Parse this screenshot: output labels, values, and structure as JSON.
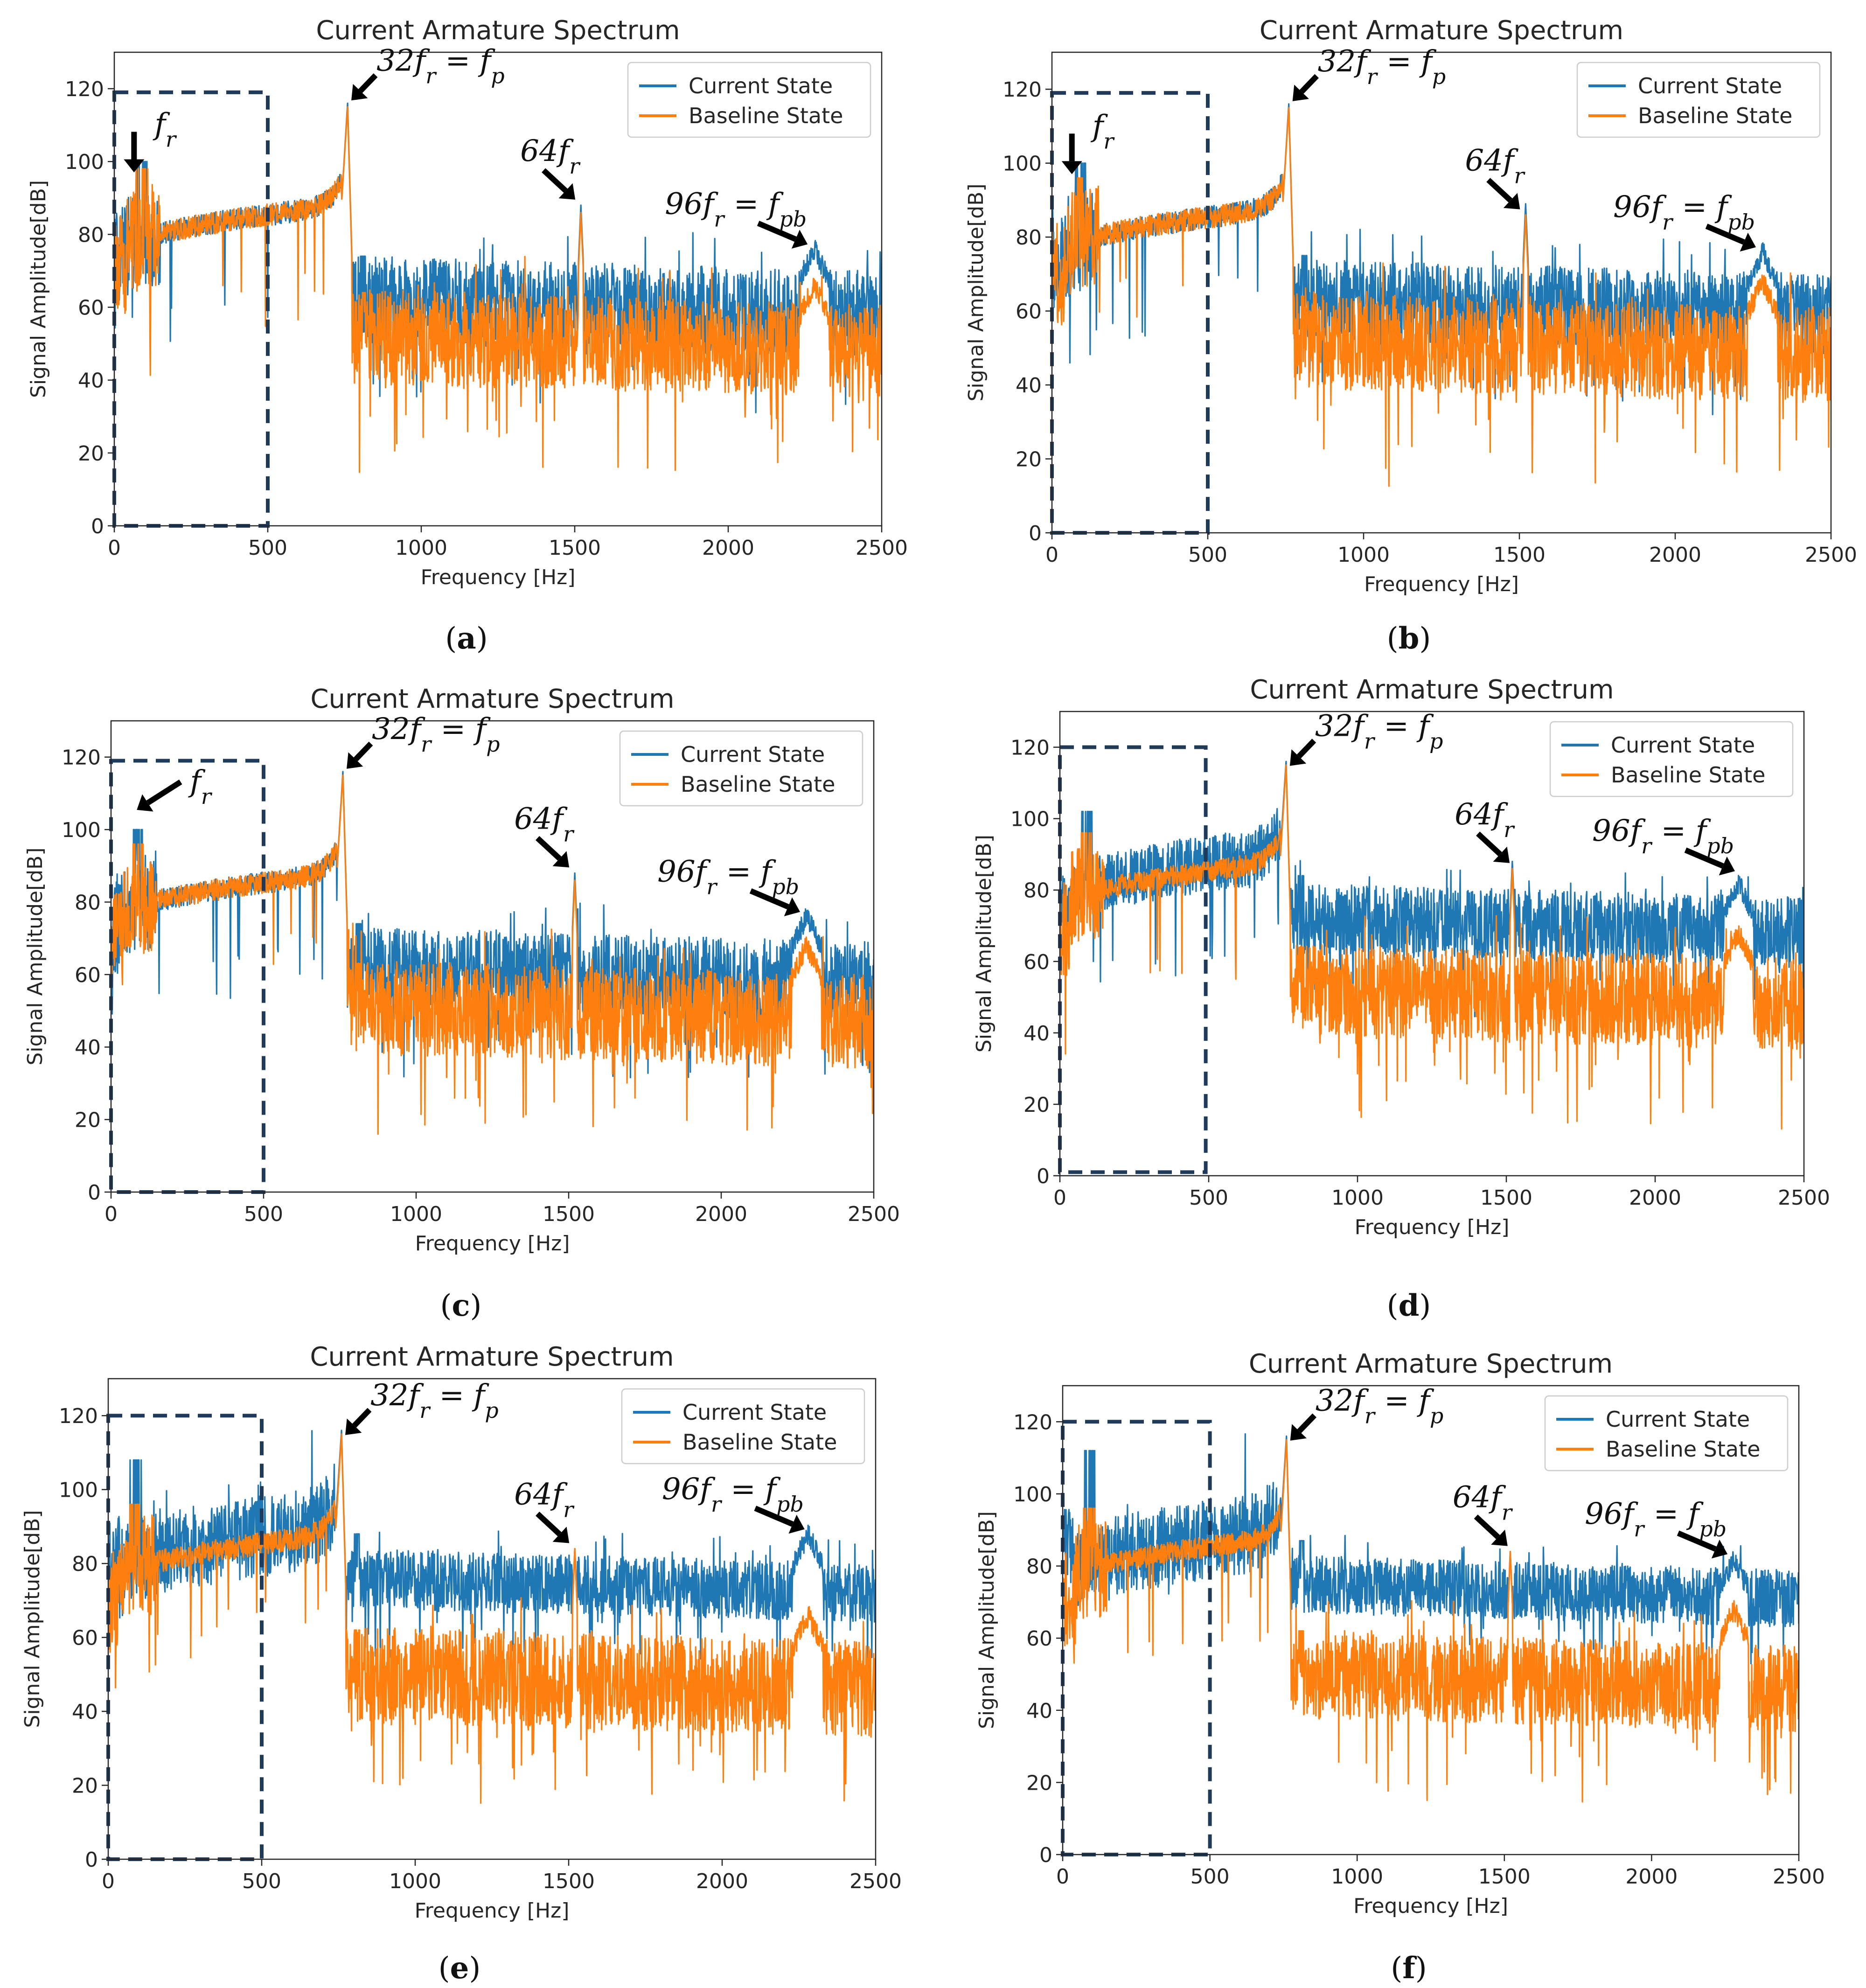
{
  "figure": {
    "panel_labels": [
      "(a)",
      "(b)",
      "(c)",
      "(d)",
      "(e)",
      "(f)"
    ],
    "colors": {
      "current": "#1f77b4",
      "baseline": "#ff7f0e",
      "box": "#1f3a5a",
      "arrow": "#000000"
    }
  },
  "chart_data": [
    {
      "type": "line",
      "panel": "(a)",
      "title": "Current Armature Spectrum",
      "xlabel": "Frequency [Hz]",
      "ylabel": "Signal Amplitude[dB]",
      "xlim": [
        0,
        2500
      ],
      "ylim": [
        0,
        130
      ],
      "xticks": [
        0,
        500,
        1000,
        1500,
        2000,
        2500
      ],
      "yticks": [
        0,
        20,
        40,
        60,
        80,
        100,
        120
      ],
      "legend": [
        "Current State",
        "Baseline State"
      ],
      "legend_loc": "top-right",
      "box_region_hz": [
        0,
        500
      ],
      "box_region_db": [
        0,
        119
      ],
      "series": [
        {
          "name": "Current State",
          "profile": {
            "low_band_db": 80,
            "knee_db": 88,
            "peak_fp_db": 116,
            "peak_64fr_db": 88,
            "peak_96fr_db": 76,
            "hf_mean_db": 62,
            "hf_spread_db": 12
          }
        },
        {
          "name": "Baseline State",
          "profile": {
            "low_band_db": 78,
            "knee_db": 88,
            "peak_fp_db": 115,
            "peak_64fr_db": 86,
            "peak_96fr_db": 66,
            "hf_mean_db": 52,
            "hf_spread_db": 13
          }
        }
      ],
      "annotations": [
        {
          "text": "f_r",
          "math": [
            "f",
            "r"
          ],
          "x_hz": 40,
          "y_db": 96
        },
        {
          "text": "32f_r = f_p",
          "math": [
            "32f",
            "r",
            " = f",
            "p"
          ],
          "x_hz": 760,
          "y_db": 116
        },
        {
          "text": "64f_r",
          "math": [
            "64f",
            "r"
          ],
          "x_hz": 1520,
          "y_db": 88
        },
        {
          "text": "96f_r = f_pb",
          "math": [
            "96f",
            "r",
            " = f",
            "pb"
          ],
          "x_hz": 2280,
          "y_db": 76
        }
      ]
    },
    {
      "type": "line",
      "panel": "(b)",
      "title": "Current Armature Spectrum",
      "xlabel": "Frequency [Hz]",
      "ylabel": "Signal Amplitude[dB]",
      "xlim": [
        0,
        2500
      ],
      "ylim": [
        0,
        130
      ],
      "xticks": [
        0,
        500,
        1000,
        1500,
        2000,
        2500
      ],
      "yticks": [
        0,
        20,
        40,
        60,
        80,
        100,
        120
      ],
      "legend": [
        "Current State",
        "Baseline State"
      ],
      "legend_loc": "top-right",
      "box_region_hz": [
        0,
        500
      ],
      "box_region_db": [
        0,
        119
      ],
      "series": [
        {
          "name": "Current State",
          "profile": {
            "low_band_db": 80,
            "knee_db": 88,
            "peak_fp_db": 116,
            "peak_64fr_db": 89,
            "peak_96fr_db": 76,
            "hf_mean_db": 63,
            "hf_spread_db": 11
          }
        },
        {
          "name": "Baseline State",
          "profile": {
            "low_band_db": 76,
            "knee_db": 88,
            "peak_fp_db": 115,
            "peak_64fr_db": 86,
            "peak_96fr_db": 68,
            "hf_mean_db": 52,
            "hf_spread_db": 13
          }
        }
      ],
      "annotations": [
        {
          "text": "f_r",
          "math": [
            "f",
            "r"
          ],
          "x_hz": 40,
          "y_db": 96
        },
        {
          "text": "32f_r = f_p",
          "math": [
            "32f",
            "r",
            " = f",
            "p"
          ],
          "x_hz": 760,
          "y_db": 116
        },
        {
          "text": "64f_r",
          "math": [
            "64f",
            "r"
          ],
          "x_hz": 1520,
          "y_db": 86
        },
        {
          "text": "96f_r = f_pb",
          "math": [
            "96f",
            "r",
            " = f",
            "pb"
          ],
          "x_hz": 2280,
          "y_db": 76
        }
      ]
    },
    {
      "type": "line",
      "panel": "(c)",
      "title": "Current Armature Spectrum",
      "xlabel": "Frequency [Hz]",
      "ylabel": "Signal Amplitude[dB]",
      "xlim": [
        0,
        2500
      ],
      "ylim": [
        0,
        130
      ],
      "xticks": [
        0,
        500,
        1000,
        1500,
        2000,
        2500
      ],
      "yticks": [
        0,
        20,
        40,
        60,
        80,
        100,
        120
      ],
      "legend": [
        "Current State",
        "Baseline State"
      ],
      "legend_loc": "top-right",
      "box_region_hz": [
        0,
        500
      ],
      "box_region_db": [
        0,
        119
      ],
      "series": [
        {
          "name": "Current State",
          "profile": {
            "low_band_db": 80,
            "knee_db": 88,
            "peak_fp_db": 116,
            "peak_64fr_db": 88,
            "peak_96fr_db": 76,
            "hf_mean_db": 62,
            "hf_spread_db": 11
          }
        },
        {
          "name": "Baseline State",
          "profile": {
            "low_band_db": 76,
            "knee_db": 88,
            "peak_fp_db": 115,
            "peak_64fr_db": 86,
            "peak_96fr_db": 68,
            "hf_mean_db": 51,
            "hf_spread_db": 13
          }
        }
      ],
      "annotations": [
        {
          "text": "f_r",
          "math": [
            "f",
            "r"
          ],
          "x_hz": 60,
          "y_db": 108
        },
        {
          "text": "32f_r = f_p",
          "math": [
            "32f",
            "r",
            " = f",
            "p"
          ],
          "x_hz": 760,
          "y_db": 116
        },
        {
          "text": "64f_r",
          "math": [
            "64f",
            "r"
          ],
          "x_hz": 1520,
          "y_db": 88
        },
        {
          "text": "96f_r = f_pb",
          "math": [
            "96f",
            "r",
            " = f",
            "pb"
          ],
          "x_hz": 2280,
          "y_db": 76
        }
      ]
    },
    {
      "type": "line",
      "panel": "(d)",
      "title": "Current Armature Spectrum",
      "xlabel": "Frequency [Hz]",
      "ylabel": "Signal Amplitude[dB]",
      "xlim": [
        0,
        2500
      ],
      "ylim": [
        0,
        130
      ],
      "xticks": [
        0,
        500,
        1000,
        1500,
        2000,
        2500
      ],
      "yticks": [
        0,
        20,
        40,
        60,
        80,
        100,
        120
      ],
      "legend": [
        "Current State",
        "Baseline State"
      ],
      "legend_loc": "top-right",
      "box_region_hz": [
        0,
        490
      ],
      "box_region_db": [
        1,
        120
      ],
      "series": [
        {
          "name": "Current State",
          "profile": {
            "low_band_db": 82,
            "knee_db": 90,
            "peak_fp_db": 116,
            "peak_64fr_db": 88,
            "peak_96fr_db": 82,
            "hf_mean_db": 72,
            "hf_spread_db": 10
          }
        },
        {
          "name": "Baseline State",
          "profile": {
            "low_band_db": 76,
            "knee_db": 88,
            "peak_fp_db": 115,
            "peak_64fr_db": 86,
            "peak_96fr_db": 68,
            "hf_mean_db": 52,
            "hf_spread_db": 13
          }
        }
      ],
      "annotations": [
        {
          "text": "32f_r = f_p",
          "math": [
            "32f",
            "r",
            " = f",
            "p"
          ],
          "x_hz": 760,
          "y_db": 114
        },
        {
          "text": "64f_r",
          "math": [
            "64f",
            "r"
          ],
          "x_hz": 1530,
          "y_db": 86
        },
        {
          "text": "96f_r = f_pb",
          "math": [
            "96f",
            "r",
            " = f",
            "pb"
          ],
          "x_hz": 2290,
          "y_db": 84
        }
      ]
    },
    {
      "type": "line",
      "panel": "(e)",
      "title": "Current Armature Spectrum",
      "xlabel": "Frequency [Hz]",
      "ylabel": "Signal Amplitude[dB]",
      "xlim": [
        0,
        2500
      ],
      "ylim": [
        0,
        130
      ],
      "xticks": [
        0,
        500,
        1000,
        1500,
        2000,
        2500
      ],
      "yticks": [
        0,
        20,
        40,
        60,
        80,
        100,
        120
      ],
      "legend": [
        "Current State",
        "Baseline State"
      ],
      "legend_loc": "top-right",
      "box_region_hz": [
        0,
        500
      ],
      "box_region_db": [
        0,
        120
      ],
      "series": [
        {
          "name": "Current State",
          "profile": {
            "low_band_db": 88,
            "knee_db": 90,
            "peak_fp_db": 116,
            "peak_64fr_db": 84,
            "peak_96fr_db": 88,
            "hf_mean_db": 76,
            "hf_spread_db": 8
          }
        },
        {
          "name": "Baseline State",
          "profile": {
            "low_band_db": 76,
            "knee_db": 88,
            "peak_fp_db": 115,
            "peak_64fr_db": 84,
            "peak_96fr_db": 66,
            "hf_mean_db": 50,
            "hf_spread_db": 13
          }
        }
      ],
      "annotations": [
        {
          "text": "32f_r = f_p",
          "math": [
            "32f",
            "r",
            " = f",
            "p"
          ],
          "x_hz": 760,
          "y_db": 114
        },
        {
          "text": "64f_r",
          "math": [
            "64f",
            "r"
          ],
          "x_hz": 1520,
          "y_db": 84
        },
        {
          "text": "96f_r = f_pb",
          "math": [
            "96f",
            "r",
            " = f",
            "pb"
          ],
          "x_hz": 2290,
          "y_db": 88
        }
      ]
    },
    {
      "type": "line",
      "panel": "(f)",
      "title": "Current Armature Spectrum",
      "xlabel": "Frequency [Hz]",
      "ylabel": "Signal Amplitude[dB]",
      "xlim": [
        0,
        2500
      ],
      "ylim": [
        0,
        130
      ],
      "xticks": [
        0,
        500,
        1000,
        1500,
        2000,
        2500
      ],
      "yticks": [
        0,
        20,
        40,
        60,
        80,
        100,
        120
      ],
      "legend": [
        "Current State",
        "Baseline State"
      ],
      "legend_loc": "top-right",
      "box_region_hz": [
        0,
        500
      ],
      "box_region_db": [
        0,
        120
      ],
      "series": [
        {
          "name": "Current State",
          "profile": {
            "low_band_db": 92,
            "knee_db": 90,
            "peak_fp_db": 116,
            "peak_64fr_db": 84,
            "peak_96fr_db": 82,
            "hf_mean_db": 75,
            "hf_spread_db": 8
          }
        },
        {
          "name": "Baseline State",
          "profile": {
            "low_band_db": 76,
            "knee_db": 88,
            "peak_fp_db": 115,
            "peak_64fr_db": 84,
            "peak_96fr_db": 68,
            "hf_mean_db": 50,
            "hf_spread_db": 12
          }
        }
      ],
      "annotations": [
        {
          "text": "32f_r = f_p",
          "math": [
            "32f",
            "r",
            " = f",
            "p"
          ],
          "x_hz": 760,
          "y_db": 114
        },
        {
          "text": "64f_r",
          "math": [
            "64f",
            "r"
          ],
          "x_hz": 1530,
          "y_db": 84
        },
        {
          "text": "96f_r = f_pb",
          "math": [
            "96f",
            "r",
            " = f",
            "pb"
          ],
          "x_hz": 2280,
          "y_db": 82
        }
      ]
    }
  ]
}
